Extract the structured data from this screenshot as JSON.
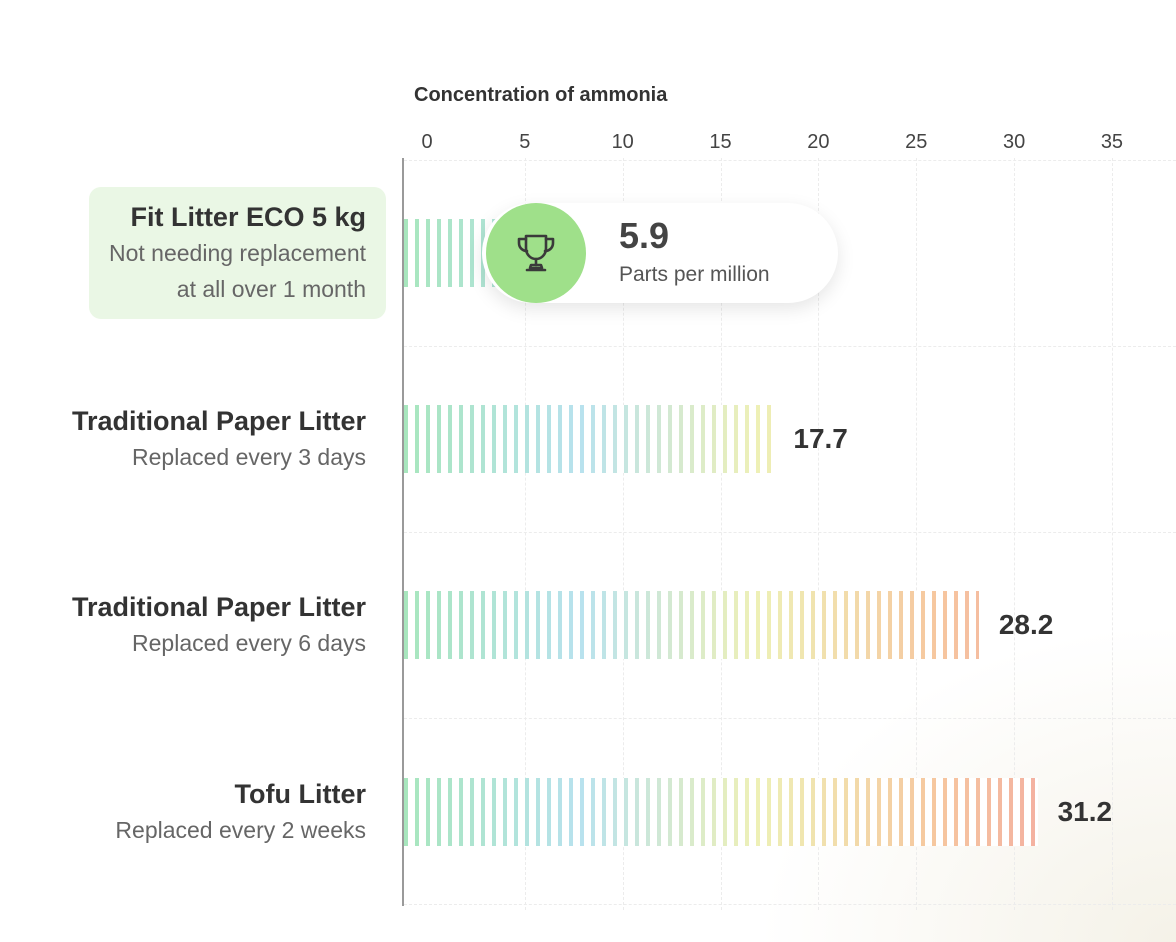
{
  "chart_data": {
    "type": "bar",
    "orientation": "horizontal",
    "title": "Concentration of ammonia",
    "xlim": [
      0,
      35
    ],
    "x_ticks": [
      "0",
      "5",
      "10",
      "15",
      "20",
      "25",
      "30",
      "35"
    ],
    "grid": true,
    "categories": [
      {
        "name": "Fit Litter ECO 5 kg",
        "description": "Not needing replacement\nat all over 1 month",
        "highlight": true
      },
      {
        "name": "Traditional Paper Litter",
        "description": "Replaced every 3 days",
        "highlight": false
      },
      {
        "name": "Traditional Paper Litter",
        "description": "Replaced every 6 days",
        "highlight": false
      },
      {
        "name": "Tofu Litter",
        "description": "Replaced every 2 weeks",
        "highlight": false
      }
    ],
    "values": [
      5.9,
      17.7,
      28.2,
      31.2
    ],
    "value_labels": [
      "5.9",
      "17.7",
      "28.2",
      "31.2"
    ],
    "callout": {
      "value": "5.9",
      "unit": "Parts per million",
      "icon": "trophy-icon",
      "color": "#9fe08a"
    },
    "color_scale": [
      "#a8e6bd",
      "#b8e2ee",
      "#eef0b6",
      "#f6c79f",
      "#f2a2a2"
    ],
    "highlight_color": "#eaf7e5"
  }
}
